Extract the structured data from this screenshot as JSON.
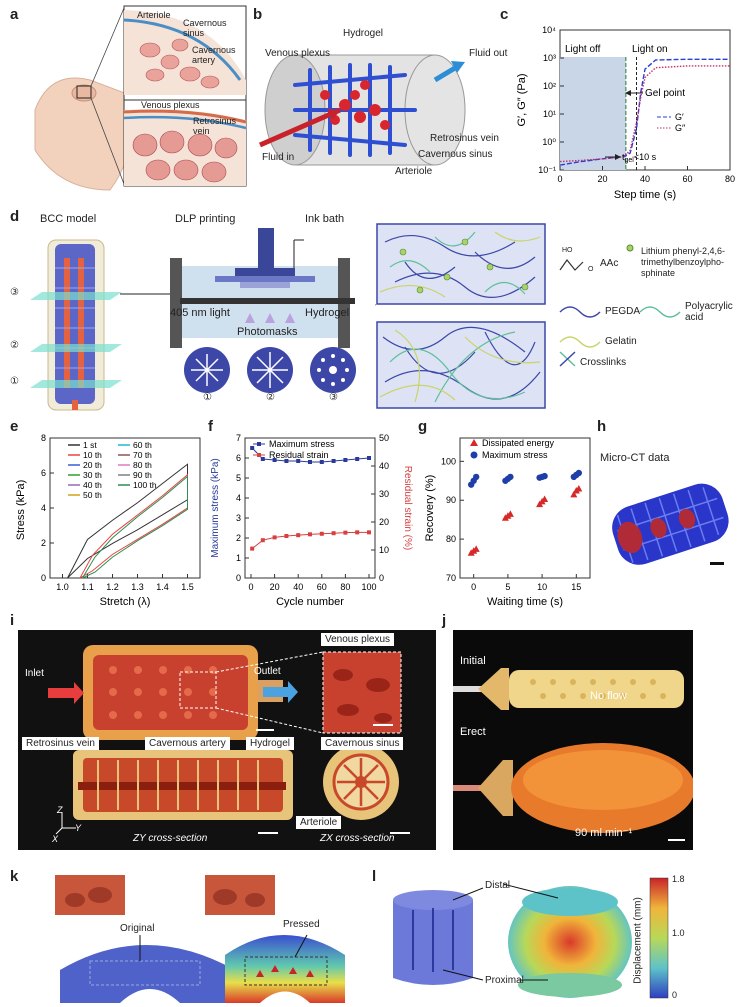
{
  "panels": {
    "a": "a",
    "b": "b",
    "c": "c",
    "d": "d",
    "e": "e",
    "f": "f",
    "g": "g",
    "h": "h",
    "i": "i",
    "j": "j",
    "k": "k",
    "l": "l"
  },
  "a": {
    "arteriole": "Arteriole",
    "cav_sinus": "Cavernous sinus",
    "cav_artery": "Cavernous artery",
    "venous_plexus": "Venous plexus",
    "retrosinus": "Retrosinus vein"
  },
  "b": {
    "hydrogel": "Hydrogel",
    "venous_plexus": "Venous plexus",
    "fluid_out": "Fluid out",
    "fluid_in": "Fluid in",
    "retrosinus": "Retrosinus vein",
    "cav_sinus": "Cavernous sinus",
    "arteriole": "Arteriole"
  },
  "c": {
    "light_off": "Light off",
    "light_on": "Light on",
    "gel_point": "Gel point",
    "tgel": "t",
    "tgel_sub": "gel",
    "tgel_val": "<10 s",
    "legend1": "G′",
    "legend2": "G″",
    "xlabel": "Step time (s)",
    "ylabel": "G′, G″ (Pa)",
    "xticks": [
      "0",
      "20",
      "40",
      "60",
      "80"
    ],
    "yticks": [
      "10⁻¹",
      "10⁰",
      "10¹",
      "10²",
      "10³",
      "10⁴"
    ]
  },
  "d": {
    "bcc": "BCC model",
    "dlp": "DLP printing",
    "ink_bath": "Ink bath",
    "light": "405 nm light",
    "hydrogel": "Hydrogel",
    "photomasks": "Photomasks",
    "m1": "①",
    "m2": "②",
    "m3": "③",
    "aac": "AAc",
    "ho": "HO",
    "o": "O",
    "lap": "Lithium phenyl-2,4,6-trimethylbenzoylpho-sphinate",
    "pegda": "PEGDA",
    "paa": "Polyacrylic acid",
    "gelatin": "Gelatin",
    "crosslinks": "Crosslinks"
  },
  "e": {
    "xlabel": "Stretch (λ)",
    "ylabel": "Stress (kPa)",
    "legend": [
      "1 st",
      "10 th",
      "20 th",
      "30 th",
      "40 th",
      "50 th",
      "60 th",
      "70 th",
      "80 th",
      "90 th",
      "100 th"
    ],
    "colors": [
      "#333333",
      "#e8453c",
      "#3b5bdb",
      "#2ca02c",
      "#9467bd",
      "#d4a017",
      "#17becf",
      "#8c564b",
      "#e377c2",
      "#7f7f7f",
      "#2e8b57"
    ],
    "xticks": [
      "1.0",
      "1.1",
      "1.2",
      "1.3",
      "1.4",
      "1.5"
    ],
    "yticks": [
      "0",
      "2",
      "4",
      "6",
      "8"
    ]
  },
  "f": {
    "legend1": "Maximum stress",
    "legend2": "Residual strain",
    "xlabel": "Cycle number",
    "ylabel_l": "Maximum stress (kPa)",
    "ylabel_r": "Residual strain (%)",
    "xticks": [
      "0",
      "20",
      "40",
      "60",
      "80",
      "100"
    ],
    "yticks_l": [
      "0",
      "1",
      "2",
      "3",
      "4",
      "5",
      "6",
      "7"
    ],
    "yticks_r": [
      "0",
      "10",
      "20",
      "30",
      "40",
      "50"
    ]
  },
  "g": {
    "legend1": "Dissipated energy",
    "legend2": "Maximum stress",
    "xlabel": "Waiting time (s)",
    "ylabel": "Recovery (%)",
    "xticks": [
      "0",
      "5",
      "10",
      "15"
    ],
    "yticks": [
      "70",
      "80",
      "90",
      "100"
    ]
  },
  "h": {
    "title": "Micro-CT data"
  },
  "i": {
    "inlet": "Inlet",
    "outlet": "Outlet",
    "venous_plexus": "Venous plexus",
    "retrosinus": "Retrosinus vein",
    "cav_artery": "Cavernous artery",
    "hydrogel": "Hydrogel",
    "cav_sinus": "Cavernous sinus",
    "arteriole": "Arteriole",
    "zy": "ZY cross-section",
    "zx": "ZX cross-section",
    "ax_z": "Z",
    "ax_y": "Y",
    "ax_x": "X"
  },
  "j": {
    "initial": "Initial",
    "no_flow": "No flow",
    "erect": "Erect",
    "flow": "90 ml min⁻¹"
  },
  "k": {
    "original": "Original",
    "pressed": "Pressed"
  },
  "l": {
    "distal": "Distal",
    "proximal": "Proximal",
    "cb_label": "Displacement (mm)",
    "cb_ticks": [
      "1.8",
      "1.0",
      "0"
    ]
  },
  "chart_data": [
    {
      "type": "line",
      "panel": "c",
      "xlabel": "Step time (s)",
      "ylabel": "G′, G″ (Pa)",
      "yscale": "log",
      "xlim": [
        0,
        80
      ],
      "ylim": [
        0.1,
        10000
      ],
      "series": [
        {
          "name": "G′",
          "x": [
            0,
            10,
            20,
            30,
            33,
            36,
            38,
            40,
            45,
            60,
            80
          ],
          "y": [
            0.15,
            0.2,
            0.25,
            0.3,
            0.4,
            3,
            60,
            400,
            850,
            900,
            900
          ]
        },
        {
          "name": "G″",
          "x": [
            0,
            10,
            20,
            30,
            33,
            36,
            38,
            40,
            45,
            60,
            80
          ],
          "y": [
            0.2,
            0.22,
            0.25,
            0.3,
            0.5,
            5,
            40,
            200,
            450,
            520,
            520
          ]
        }
      ]
    },
    {
      "type": "line",
      "panel": "e",
      "xlabel": "Stretch (λ)",
      "ylabel": "Stress (kPa)",
      "xlim": [
        0.95,
        1.55
      ],
      "ylim": [
        0,
        8
      ],
      "series": [
        {
          "name": "1 st",
          "x": [
            1.02,
            1.1,
            1.2,
            1.3,
            1.4,
            1.5
          ],
          "y": [
            0,
            2.2,
            3.3,
            4.3,
            5.4,
            6.5
          ]
        },
        {
          "name": "10 th",
          "x": [
            1.07,
            1.12,
            1.2,
            1.3,
            1.4,
            1.5
          ],
          "y": [
            0,
            1.3,
            2.5,
            3.6,
            4.7,
            5.9
          ]
        },
        {
          "name": "100 th",
          "x": [
            1.08,
            1.13,
            1.2,
            1.3,
            1.4,
            1.5
          ],
          "y": [
            0,
            1.2,
            2.3,
            3.5,
            4.6,
            5.8
          ]
        }
      ]
    },
    {
      "type": "line",
      "panel": "f",
      "xlabel": "Cycle number",
      "xlim": [
        0,
        100
      ],
      "series": [
        {
          "name": "Maximum stress",
          "axis": "left",
          "ylim": [
            0,
            7
          ],
          "x": [
            1,
            10,
            20,
            30,
            40,
            50,
            60,
            70,
            80,
            90,
            100
          ],
          "y": [
            6.5,
            5.95,
            5.9,
            5.85,
            5.85,
            5.8,
            5.8,
            5.85,
            5.9,
            5.95,
            6.0
          ]
        },
        {
          "name": "Residual strain",
          "axis": "right",
          "ylim": [
            0,
            50
          ],
          "x": [
            1,
            10,
            20,
            30,
            40,
            50,
            60,
            70,
            80,
            90,
            100
          ],
          "y": [
            10.5,
            13.5,
            14.5,
            15,
            15.3,
            15.6,
            15.8,
            16,
            16.2,
            16.3,
            16.3
          ]
        }
      ]
    },
    {
      "type": "scatter",
      "panel": "g",
      "xlabel": "Waiting time (s)",
      "ylabel": "Recovery (%)",
      "xlim": [
        -2,
        17
      ],
      "ylim": [
        70,
        106
      ],
      "series": [
        {
          "name": "Dissipated energy",
          "x": [
            0,
            0,
            0,
            5,
            5,
            5,
            10,
            10,
            10,
            15,
            15,
            15
          ],
          "y": [
            76.5,
            77,
            77.5,
            85.5,
            86,
            86.5,
            89,
            89.7,
            90.3,
            91.5,
            92.5,
            93
          ]
        },
        {
          "name": "Maximum stress",
          "x": [
            0,
            0,
            0,
            5,
            5,
            5,
            10,
            10,
            10,
            15,
            15,
            15
          ],
          "y": [
            94,
            95,
            96,
            95,
            95.5,
            96,
            95.8,
            96,
            96.2,
            96,
            96.5,
            97
          ]
        }
      ]
    }
  ]
}
